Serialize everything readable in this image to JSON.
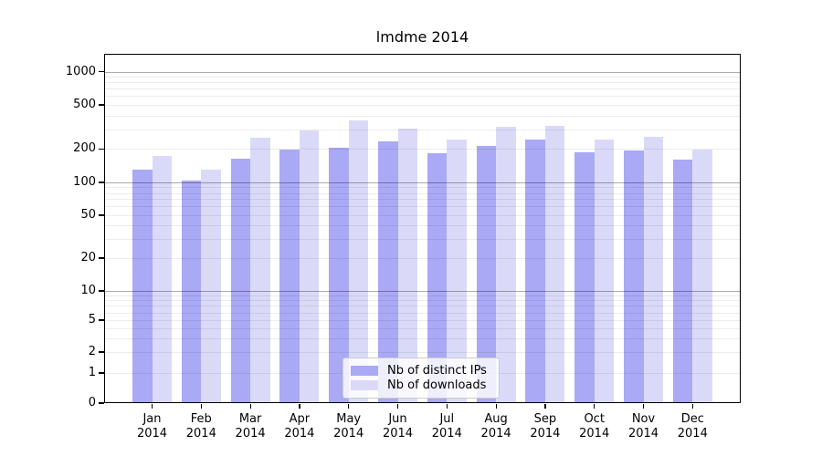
{
  "title": "lmdme 2014",
  "colors": {
    "distinct_ips": "#a9a9f6",
    "downloads": "#dadaf8",
    "axis": "#000000",
    "grid_major": "#b0b0b0",
    "grid_minor": "#ebebeb",
    "legend_border": "#cccccc"
  },
  "legend": {
    "items": [
      {
        "label": "Nb of distinct IPs",
        "series": "distinct_ips"
      },
      {
        "label": "Nb of downloads",
        "series": "downloads"
      }
    ]
  },
  "x_axis": {
    "months": [
      "Jan",
      "Feb",
      "Mar",
      "Apr",
      "May",
      "Jun",
      "Jul",
      "Aug",
      "Sep",
      "Oct",
      "Nov",
      "Dec"
    ],
    "year": "2014"
  },
  "y_axis": {
    "ticks": [
      {
        "value": 0,
        "label": "0"
      },
      {
        "value": 1,
        "label": "1"
      },
      {
        "value": 2,
        "label": "2"
      },
      {
        "value": 5,
        "label": "5"
      },
      {
        "value": 10,
        "label": "10"
      },
      {
        "value": 20,
        "label": "20"
      },
      {
        "value": 50,
        "label": "50"
      },
      {
        "value": 100,
        "label": "100"
      },
      {
        "value": 200,
        "label": "200"
      },
      {
        "value": 500,
        "label": "500"
      },
      {
        "value": 1000,
        "label": "1000"
      }
    ],
    "minor_gridline_values": [
      3,
      4,
      6,
      7,
      8,
      9,
      30,
      40,
      60,
      70,
      80,
      90,
      300,
      400,
      600,
      700,
      800,
      900
    ],
    "power_of_ten_values": [
      10,
      100,
      1000
    ]
  },
  "chart_data": {
    "type": "bar",
    "title": "lmdme 2014",
    "categories": [
      "Jan 2014",
      "Feb 2014",
      "Mar 2014",
      "Apr 2014",
      "May 2014",
      "Jun 2014",
      "Jul 2014",
      "Aug 2014",
      "Sep 2014",
      "Oct 2014",
      "Nov 2014",
      "Dec 2014"
    ],
    "series": [
      {
        "name": "Nb of distinct IPs",
        "color": "#a9a9f6",
        "values": [
          131,
          103,
          165,
          197,
          207,
          235,
          183,
          214,
          246,
          188,
          195,
          161
        ]
      },
      {
        "name": "Nb of downloads",
        "color": "#dadaf8",
        "values": [
          174,
          130,
          254,
          294,
          360,
          305,
          246,
          320,
          322,
          246,
          258,
          197
        ]
      }
    ],
    "xlabel": "",
    "ylabel": "",
    "yscale": "symlog",
    "ylim": [
      0,
      1450
    ],
    "yticks": [
      0,
      1,
      2,
      5,
      10,
      20,
      50,
      100,
      200,
      500,
      1000
    ],
    "grid": true,
    "legend_position": "lower center"
  }
}
